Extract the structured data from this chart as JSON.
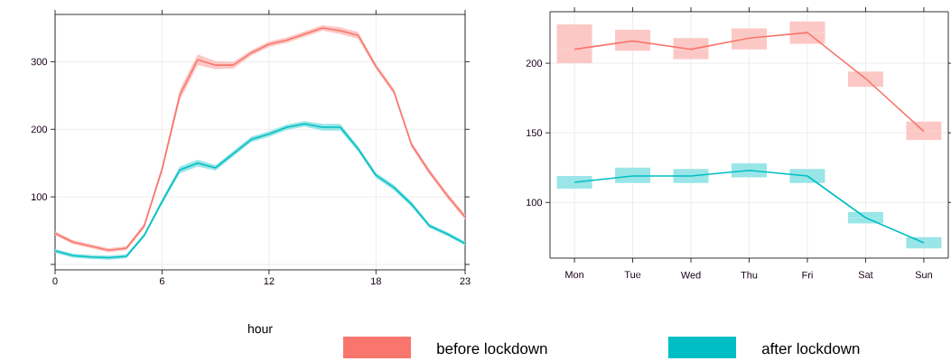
{
  "chart_data": [
    {
      "type": "line",
      "xlabel": "hour",
      "x": [
        0,
        1,
        2,
        3,
        4,
        5,
        6,
        7,
        8,
        9,
        10,
        11,
        12,
        13,
        14,
        15,
        16,
        17,
        18,
        19,
        20,
        21,
        22,
        23
      ],
      "xlim": [
        0,
        23
      ],
      "xticks": [
        0,
        6,
        12,
        18,
        23
      ],
      "ylim": [
        -8,
        370
      ],
      "yticks": [
        {
          "value": 0,
          "label": null
        },
        100,
        200,
        300
      ],
      "grid": true,
      "legend": "bottom",
      "series": [
        {
          "name": "before lockdown",
          "color": "#f8766d",
          "values": [
            46,
            33,
            27,
            21,
            24,
            57,
            141,
            251,
            303,
            295,
            295,
            313,
            326,
            332,
            341,
            350,
            346,
            339,
            293,
            256,
            177,
            137,
            102,
            70
          ],
          "lower": [
            43,
            30,
            24,
            18,
            21,
            53,
            136,
            243,
            295,
            289,
            290,
            309,
            322,
            328,
            337,
            346,
            341,
            334,
            289,
            252,
            173,
            133,
            98,
            66
          ],
          "upper": [
            49,
            36,
            30,
            24,
            27,
            61,
            146,
            259,
            311,
            301,
            300,
            317,
            330,
            336,
            345,
            354,
            351,
            344,
            297,
            260,
            181,
            141,
            106,
            74
          ]
        },
        {
          "name": "after lockdown",
          "color": "#00bfc4",
          "values": [
            20,
            13,
            11,
            10,
            12,
            43,
            93,
            140,
            150,
            143,
            164,
            185,
            193,
            203,
            208,
            203,
            203,
            171,
            132,
            114,
            89,
            57,
            45,
            31
          ],
          "lower": [
            17,
            10,
            8,
            7,
            9,
            40,
            89,
            135,
            145,
            139,
            160,
            181,
            189,
            199,
            204,
            198,
            198,
            167,
            128,
            110,
            85,
            54,
            42,
            28
          ],
          "upper": [
            23,
            16,
            14,
            13,
            15,
            46,
            97,
            145,
            155,
            147,
            168,
            189,
            197,
            207,
            212,
            208,
            208,
            175,
            136,
            118,
            93,
            60,
            48,
            34
          ]
        }
      ]
    },
    {
      "type": "line",
      "categories": [
        "Mon",
        "Tue",
        "Wed",
        "Thu",
        "Fri",
        "Sat",
        "Sun"
      ],
      "ylim": [
        60,
        237
      ],
      "yticks": [
        100,
        150,
        200
      ],
      "grid": true,
      "series": [
        {
          "color": "#f8766d",
          "values": [
            210,
            216,
            210,
            218,
            222,
            189,
            151
          ],
          "errors": [
            [
              200,
              228
            ],
            [
              209,
              224
            ],
            [
              203,
              218
            ],
            [
              210,
              225
            ],
            [
              214,
              230
            ],
            [
              183,
              194
            ],
            [
              145,
              158
            ]
          ]
        },
        {
          "color": "#00bfc4",
          "values": [
            114.5,
            119,
            119,
            123,
            119,
            89,
            71
          ],
          "errors": [
            [
              110,
              119
            ],
            [
              114,
              125
            ],
            [
              114,
              124
            ],
            [
              118,
              128
            ],
            [
              114,
              124
            ],
            [
              85,
              93
            ],
            [
              67,
              75
            ]
          ]
        }
      ]
    }
  ]
}
